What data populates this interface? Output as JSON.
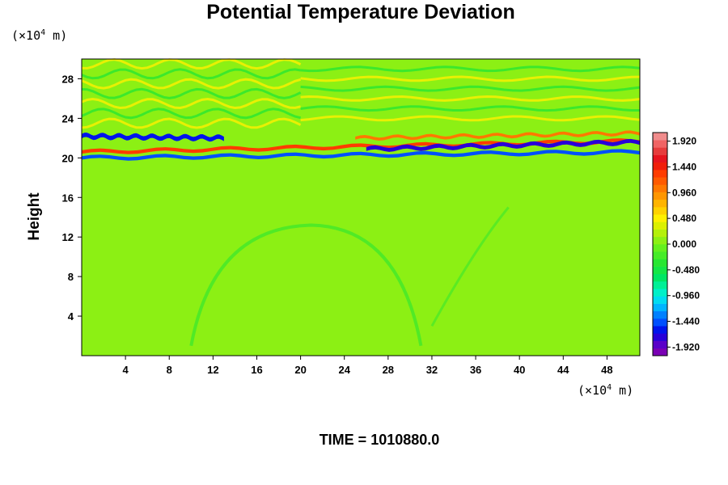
{
  "chart_data": {
    "type": "heatmap",
    "title": "Potential Temperature Deviation",
    "ylabel": "Height",
    "x_unit": {
      "prefix": "(×10",
      "exp": "4",
      "suffix": " m)"
    },
    "y_unit": {
      "prefix": "(×10",
      "exp": "4",
      "suffix": " m)"
    },
    "xlim": [
      0,
      51
    ],
    "ylim": [
      0,
      30
    ],
    "x_ticks": [
      "4",
      "8",
      "12",
      "16",
      "20",
      "24",
      "28",
      "32",
      "36",
      "40",
      "44",
      "48"
    ],
    "y_ticks": [
      "4",
      "8",
      "12",
      "16",
      "20",
      "24",
      "28"
    ],
    "x_tick_values": [
      4,
      8,
      12,
      16,
      20,
      24,
      28,
      32,
      36,
      40,
      44,
      48
    ],
    "y_tick_values": [
      4,
      8,
      12,
      16,
      20,
      24,
      28
    ],
    "colorbar": {
      "min": -2.08,
      "max": 2.08,
      "tick_labels": [
        "1.920",
        "1.440",
        "0.960",
        "0.480",
        "0.000",
        "-0.480",
        "-0.960",
        "-1.440",
        "-1.920"
      ],
      "tick_values": [
        1.92,
        1.44,
        0.96,
        0.48,
        0.0,
        -0.48,
        -0.96,
        -1.44,
        -1.92
      ],
      "colors": [
        "#7a00b4",
        "#5a00c8",
        "#2800d8",
        "#0014ec",
        "#0050ff",
        "#0080ff",
        "#00b4ff",
        "#00dcf0",
        "#00f0c8",
        "#00f096",
        "#00e664",
        "#14e646",
        "#28e632",
        "#46ec28",
        "#64f01e",
        "#8cf014",
        "#b4f00a",
        "#dcf000",
        "#fff000",
        "#ffd200",
        "#ffb400",
        "#ff9600",
        "#ff7800",
        "#ff5a00",
        "#ff3c00",
        "#f01e0a",
        "#e6141e",
        "#e63c3c",
        "#f06464",
        "#f08c8c"
      ]
    },
    "features": [
      {
        "type": "layer",
        "x0": 0,
        "x1": 51,
        "y_start": 20.0,
        "y_end": 20.6,
        "thickness": 0.35,
        "value": -1.5
      },
      {
        "type": "layer",
        "x0": 0,
        "x1": 51,
        "y_start": 20.6,
        "y_end": 21.7,
        "thickness": 0.35,
        "value": 1.3
      },
      {
        "type": "layer",
        "x0": 26,
        "x1": 51,
        "y_start": 20.9,
        "y_end": 21.6,
        "thickness": 0.4,
        "value": -1.8
      },
      {
        "type": "layer",
        "x0": 0,
        "x1": 13,
        "y_start": 22.2,
        "y_end": 22.0,
        "thickness": 0.45,
        "value": -1.6
      },
      {
        "type": "layer",
        "x0": 25,
        "x1": 51,
        "y_start": 22.0,
        "y_end": 22.5,
        "thickness": 0.3,
        "value": 1.0
      },
      {
        "type": "waves",
        "y0": 23.5,
        "y1": 29.5,
        "x0": 0,
        "x1": 20,
        "amplitude": 0.45
      },
      {
        "type": "waves",
        "y0": 24.0,
        "y1": 29.0,
        "x0": 20,
        "x1": 51,
        "amplitude": 0.2
      }
    ]
  },
  "footer": {
    "time_label": "TIME = 1010880.0"
  }
}
